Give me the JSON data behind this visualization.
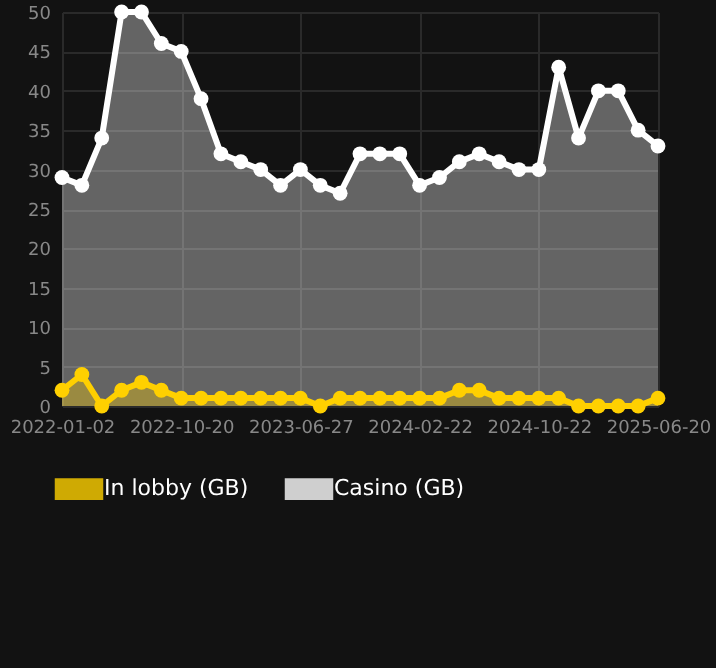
{
  "chart_data": {
    "type": "area",
    "categories": [
      "2022-01-02",
      null,
      null,
      null,
      null,
      null,
      "2022-10-20",
      null,
      null,
      null,
      null,
      null,
      "2023-06-27",
      null,
      null,
      null,
      null,
      null,
      "2024-02-22",
      null,
      null,
      null,
      null,
      null,
      "2024-10-22",
      null,
      null,
      null,
      null,
      null,
      "2025-06-20"
    ],
    "series": [
      {
        "name": "In lobby (GB)",
        "color": "#ffd000",
        "values": [
          2,
          4,
          0,
          2,
          3,
          2,
          1,
          1,
          1,
          1,
          1,
          1,
          1,
          0,
          1,
          1,
          1,
          1,
          1,
          1,
          2,
          2,
          1,
          1,
          1,
          1,
          0,
          0,
          0,
          0,
          1
        ]
      },
      {
        "name": "Casino (GB)",
        "color": "#ffffff",
        "values": [
          29,
          28,
          34,
          50,
          50,
          46,
          45,
          39,
          32,
          31,
          30,
          28,
          30,
          28,
          27,
          32,
          32,
          32,
          28,
          29,
          31,
          32,
          31,
          30,
          30,
          43,
          34,
          40,
          40,
          35,
          33
        ]
      }
    ],
    "ylim": [
      0,
      50
    ],
    "yticks": [
      0,
      5,
      10,
      15,
      20,
      25,
      30,
      35,
      40,
      45,
      50
    ],
    "grid": true,
    "legend": "bottom",
    "marker": "circle",
    "line_style": "solid"
  }
}
